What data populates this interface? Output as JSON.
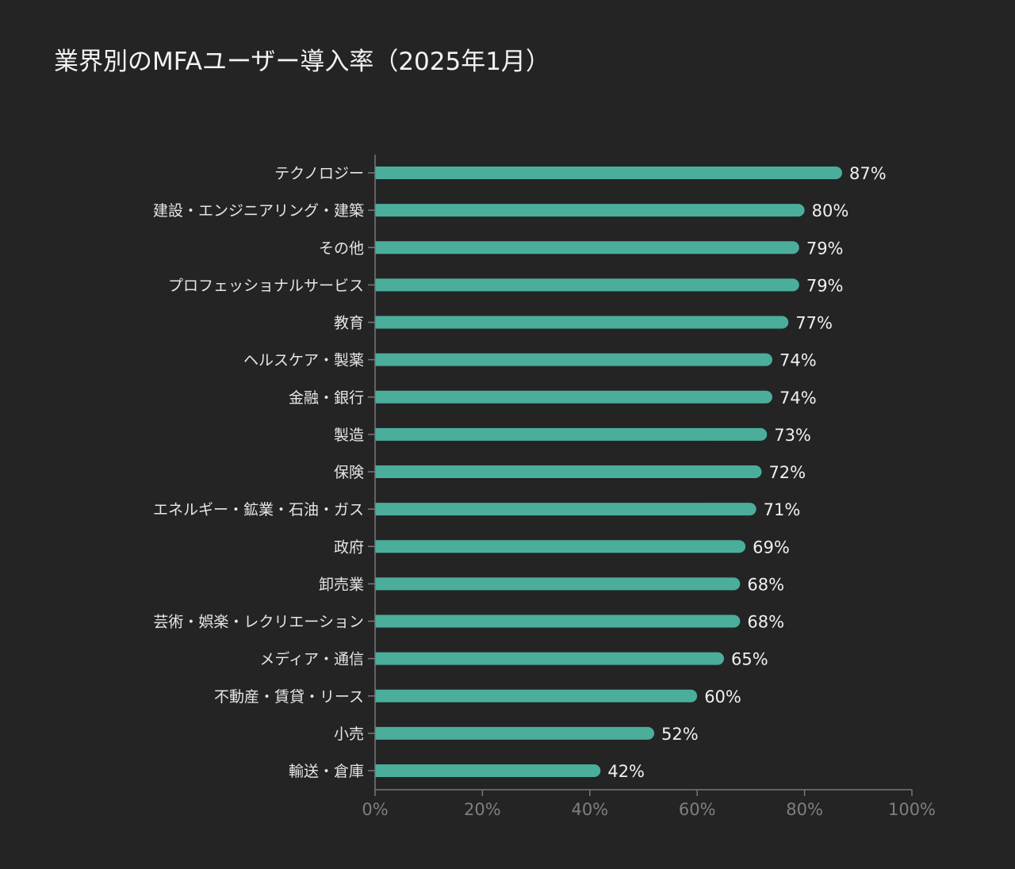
{
  "chart_data": {
    "type": "bar",
    "orientation": "horizontal",
    "title": "業界別のMFAユーザー導入率（2025年1月）",
    "xlabel": "",
    "ylabel": "",
    "xlim": [
      0,
      100
    ],
    "x_ticks": [
      "0%",
      "20%",
      "40%",
      "60%",
      "80%",
      "100%"
    ],
    "x_tick_values": [
      0,
      20,
      40,
      60,
      80,
      100
    ],
    "grid": false,
    "bar_color": "#4aae9b",
    "background": "#242424",
    "categories": [
      "テクノロジー",
      "建設・エンジニアリング・建築",
      "その他",
      "プロフェッショナルサービス",
      "教育",
      "ヘルスケア・製薬",
      "金融・銀行",
      "製造",
      "保険",
      "エネルギー・鉱業・石油・ガス",
      "政府",
      "卸売業",
      "芸術・娯楽・レクリエーション",
      "メディア・通信",
      "不動産・賃貸・リース",
      "小売",
      "輸送・倉庫"
    ],
    "values": [
      87,
      80,
      79,
      79,
      77,
      74,
      74,
      73,
      72,
      71,
      69,
      68,
      68,
      65,
      60,
      52,
      42
    ],
    "value_labels": [
      "87%",
      "80%",
      "79%",
      "79%",
      "77%",
      "74%",
      "74%",
      "73%",
      "72%",
      "71%",
      "69%",
      "68%",
      "68%",
      "65%",
      "60%",
      "52%",
      "42%"
    ]
  }
}
